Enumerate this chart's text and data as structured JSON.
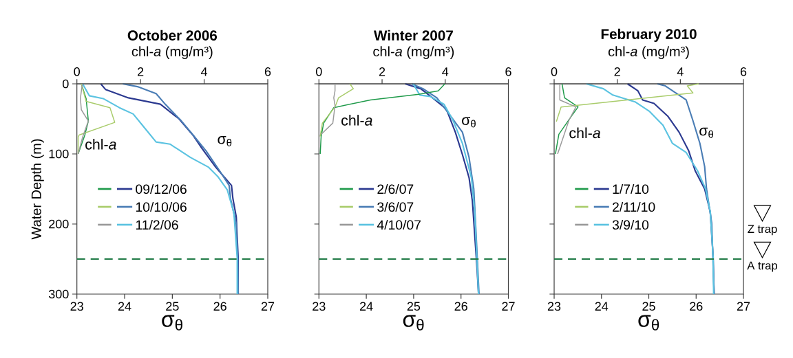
{
  "chart_data": [
    {
      "type": "line",
      "title": "October 2006",
      "xlabel": "σ$_{θ}$",
      "x2label": "chl-*a* (mg/m³)",
      "ylabel": "Water Depth (m)",
      "xlim": [
        23,
        27
      ],
      "xticks": [
        23,
        24,
        25,
        26,
        27
      ],
      "x2lim": [
        0,
        6
      ],
      "x2ticks": [
        0,
        2,
        4,
        6
      ],
      "ylim": [
        300,
        0
      ],
      "yticks": [
        0,
        100,
        200,
        300
      ],
      "legend": "left",
      "series": [
        {
          "axis": "x2",
          "color": "#1f9a4a",
          "x": [
            0.14,
            0.29,
            0.36,
            0.25,
            0.04
          ],
          "values": [
            0,
            21,
            53,
            73,
            100
          ]
        },
        {
          "axis": "x2",
          "color": "#a9cc6b",
          "x": [
            0.14,
            0.29,
            1.04,
            1.19,
            0.07,
            0.04,
            0.04
          ],
          "values": [
            0,
            25,
            34,
            55,
            73,
            76,
            100
          ]
        },
        {
          "axis": "x2",
          "color": "#9a9a9a",
          "x": [
            0.17,
            0.11,
            0.14,
            0.36,
            0.18,
            0.04
          ],
          "values": [
            0,
            21,
            37,
            53,
            76,
            100
          ]
        },
        {
          "name": "09/12/06",
          "color": "#2b3990",
          "x": [
            23.5,
            23.6,
            24.08,
            24.75,
            25.14,
            25.43,
            25.62,
            25.91,
            26.24,
            26.27,
            26.34,
            26.38,
            26.38
          ],
          "values": [
            0,
            8,
            20,
            29,
            50,
            73,
            92,
            119,
            145,
            164,
            190,
            249,
            300
          ]
        },
        {
          "name": "10/10/06",
          "color": "#4a7db5",
          "x": [
            23.96,
            24.27,
            24.66,
            24.85,
            25.19,
            25.47,
            25.71,
            26.0,
            26.19,
            26.22,
            26.34,
            26.37,
            26.38
          ],
          "values": [
            0,
            4,
            14,
            29,
            53,
            76,
            96,
            125,
            145,
            164,
            200,
            250,
            300
          ]
        },
        {
          "name": "11/2/06",
          "color": "#5bc3e1",
          "x": [
            23.12,
            23.26,
            23.55,
            23.89,
            24.18,
            24.42,
            24.66,
            24.95,
            25.38,
            25.76,
            25.95,
            26.15,
            26.29,
            26.36,
            26.36
          ],
          "values": [
            0,
            17,
            21,
            34,
            43,
            63,
            83,
            86,
            105,
            119,
            132,
            151,
            184,
            249,
            300
          ]
        }
      ],
      "ref_lines": [
        {
          "axis": "y",
          "value": 250,
          "color": "#1f7a45",
          "line_style": "dashed"
        }
      ],
      "annotations": [
        "chl-*a*",
        "σ$_{θ}$"
      ]
    },
    {
      "type": "line",
      "title": "Winter 2007",
      "xlabel": "σ$_{θ}$",
      "x2label": "chl-*a* (mg/m³)",
      "xlim": [
        23,
        27
      ],
      "xticks": [
        23,
        24,
        25,
        26,
        27
      ],
      "x2lim": [
        0,
        6
      ],
      "x2ticks": [
        0,
        2,
        4,
        6
      ],
      "ylim": [
        300,
        0
      ],
      "yticks": [
        0,
        100,
        200,
        300
      ],
      "tick_labels": "x",
      "legend": "left",
      "series": [
        {
          "axis": "x2",
          "color": "#1f9a4a",
          "x": [
            3.99,
            3.78,
            3.16,
            1.63,
            0.47,
            0.15,
            0.07,
            0.04
          ],
          "values": [
            0,
            10,
            15,
            23,
            34,
            56,
            75,
            100
          ]
        },
        {
          "axis": "x2",
          "color": "#a9cc6b",
          "x": [
            0.98,
            1.09,
            0.62,
            0.51,
            0.11,
            0.04
          ],
          "values": [
            0,
            7,
            20,
            33,
            56,
            75
          ]
        },
        {
          "axis": "x2",
          "color": "#9a9a9a",
          "x": [
            0.51,
            0.51,
            0.47,
            0.51,
            0.44,
            0.07
          ],
          "values": [
            0,
            10,
            20,
            31,
            56,
            72
          ]
        },
        {
          "name": "2/6/07",
          "color": "#2b3990",
          "x": [
            24.82,
            25.15,
            25.4,
            25.69,
            25.88,
            26.03,
            26.17,
            26.24,
            26.29,
            26.34,
            26.37
          ],
          "values": [
            0,
            7,
            20,
            36,
            69,
            101,
            134,
            167,
            216,
            265,
            300
          ]
        },
        {
          "name": "3/6/07",
          "color": "#4a7db5",
          "x": [
            24.96,
            25.2,
            25.49,
            25.78,
            26.03,
            26.17,
            26.27,
            26.32,
            26.38
          ],
          "values": [
            0,
            7,
            20,
            46,
            69,
            105,
            150,
            216,
            300
          ]
        },
        {
          "name": "4/10/07",
          "color": "#5bc3e1",
          "x": [
            24.99,
            25.13,
            25.35,
            25.64,
            25.83,
            26.03,
            26.22,
            26.29,
            26.37
          ],
          "values": [
            0,
            16,
            18,
            29,
            52,
            85,
            134,
            183,
            300
          ]
        }
      ],
      "ref_lines": [
        {
          "axis": "y",
          "value": 250,
          "color": "#1f7a45",
          "line_style": "dashed"
        }
      ],
      "annotations": [
        "chl-*a*",
        "σ$_{θ}$"
      ]
    },
    {
      "type": "line",
      "title": "February 2010",
      "xlabel": "σ$_{θ}$",
      "x2label": "chl-*a* (mg/m³)",
      "xlim": [
        23,
        27
      ],
      "xticks": [
        23,
        24,
        25,
        26,
        27
      ],
      "x2lim": [
        0,
        6
      ],
      "x2ticks": [
        0,
        2,
        4,
        6
      ],
      "ylim": [
        300,
        0
      ],
      "yticks": [
        0,
        100,
        200,
        300
      ],
      "tick_labels": "x",
      "legend": "left",
      "series": [
        {
          "axis": "x2",
          "color": "#1f9a4a",
          "x": [
            0.25,
            0.33,
            0.76,
            0.55,
            0.15,
            0.04
          ],
          "values": [
            0,
            20,
            33,
            46,
            72,
            100
          ]
        },
        {
          "axis": "x2",
          "color": "#a9cc6b",
          "x": [
            4.58,
            4.22,
            4.4,
            0.22,
            0.07
          ],
          "values": [
            0,
            3,
            13,
            33,
            54
          ]
        },
        {
          "axis": "x2",
          "color": "#9a9a9a",
          "x": [
            0.18,
            0.18,
            0.69,
            0.47,
            0.11
          ],
          "values": [
            0,
            23,
            33,
            52,
            100
          ]
        },
        {
          "name": "1/7/10",
          "color": "#2b3990",
          "x": [
            24.55,
            24.77,
            24.87,
            25.11,
            25.4,
            25.64,
            25.84,
            25.98,
            26.18,
            26.3,
            26.36,
            26.38
          ],
          "values": [
            0,
            10,
            23,
            28,
            46,
            69,
            95,
            124,
            150,
            183,
            248,
            300
          ]
        },
        {
          "name": "2/11/10",
          "color": "#4a7db5",
          "x": [
            25.18,
            25.35,
            25.57,
            25.79,
            25.93,
            26.08,
            26.18,
            26.22,
            26.33,
            26.38
          ],
          "values": [
            0,
            3,
            13,
            23,
            52,
            85,
            118,
            150,
            199,
            300
          ]
        },
        {
          "name": "3/9/10",
          "color": "#5bc3e1",
          "x": [
            23.68,
            24.04,
            24.24,
            24.72,
            25.01,
            25.3,
            25.5,
            25.79,
            26.03,
            26.2,
            26.3,
            26.36,
            26.37
          ],
          "values": [
            0,
            7,
            16,
            26,
            39,
            59,
            85,
            98,
            124,
            150,
            183,
            248,
            300
          ]
        }
      ],
      "ref_lines": [
        {
          "axis": "y",
          "value": 250,
          "color": "#1f7a45",
          "line_style": "dashed"
        }
      ],
      "annotations": [
        "chl-*a*",
        "σ$_{θ}$",
        "Z trap",
        "A trap"
      ]
    }
  ]
}
